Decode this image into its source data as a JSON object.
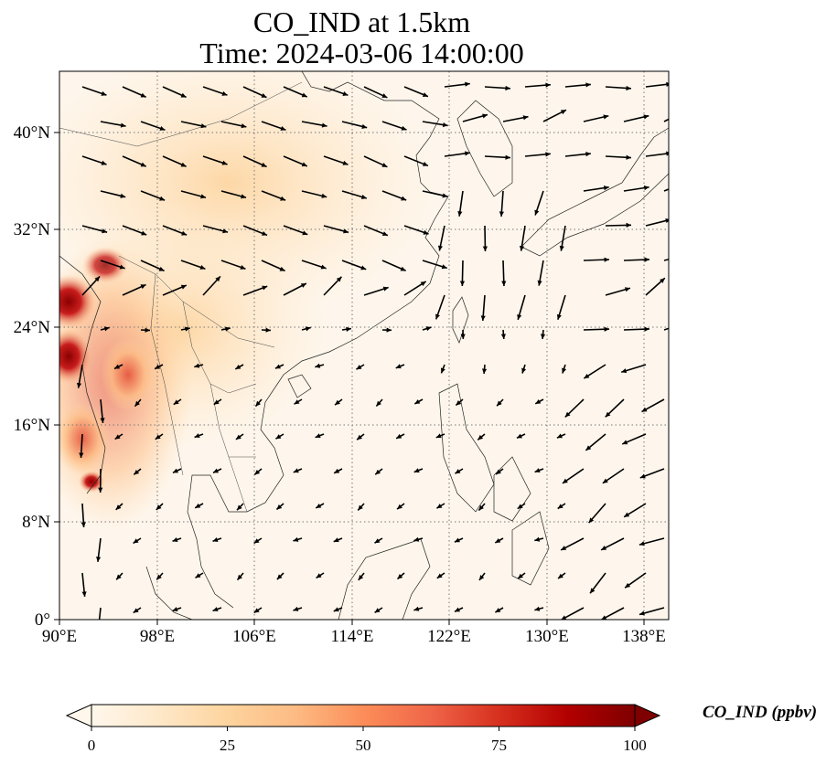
{
  "title": {
    "line1": "CO_IND at 1.5km",
    "line2": "Time: 2024-03-06 14:00:00"
  },
  "map": {
    "lon_ticks": [
      "90°E",
      "98°E",
      "106°E",
      "114°E",
      "122°E",
      "130°E",
      "138°E"
    ],
    "lat_ticks": [
      "0°",
      "8°N",
      "16°N",
      "24°N",
      "32°N",
      "40°N"
    ],
    "lon_range": [
      90,
      140
    ],
    "lat_range": [
      0,
      45
    ],
    "grid": "dotted"
  },
  "colorbar": {
    "label": "CO_IND (ppbv)",
    "ticks": [
      "0",
      "25",
      "50",
      "75",
      "100"
    ],
    "range": [
      0,
      100
    ],
    "colormap": "OrRd",
    "extend": "both",
    "colors": [
      "#fff7ec",
      "#fee8c8",
      "#fdd49e",
      "#fdbb84",
      "#fc8d59",
      "#ef6548",
      "#d7301f",
      "#b30000",
      "#7f0000"
    ]
  }
}
